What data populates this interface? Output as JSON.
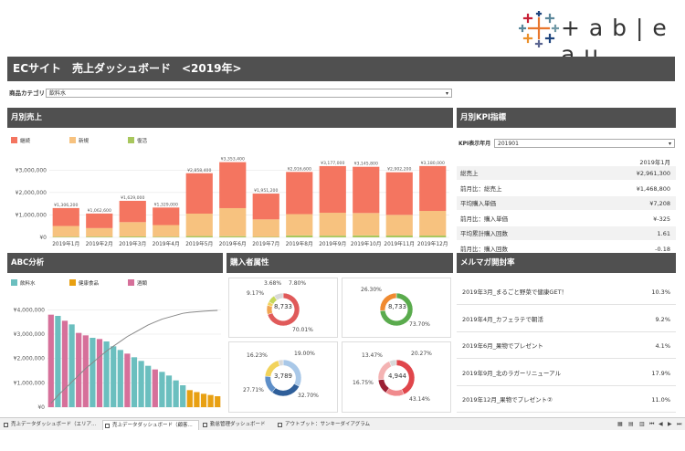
{
  "brand": {
    "logo_text": "+ a b | e a u"
  },
  "title": "ECサイト　売上ダッシュボード　<2019年>",
  "filter": {
    "label": "商品カテゴリ",
    "value": "飲料水"
  },
  "monthly": {
    "title": "月別売上",
    "legend": [
      "継続",
      "新規",
      "復活"
    ]
  },
  "kpi": {
    "title": "月別KPI指標",
    "label": "KPI表示年月",
    "value": "201901",
    "column": "2019年1月",
    "rows": [
      {
        "label": "総売上",
        "value": "¥2,961,300"
      },
      {
        "label": "前月比：総売上",
        "value": "¥1,468,800"
      },
      {
        "label": "平均購入単価",
        "value": "¥7,208"
      },
      {
        "label": "前月比：購入単価",
        "value": "¥-325"
      },
      {
        "label": "平均累計購入回数",
        "value": "1.61"
      },
      {
        "label": "前月比：購入回数",
        "value": "-0.18"
      }
    ]
  },
  "abc": {
    "title": "ABC分析",
    "legend": [
      "飲料水",
      "健康食品",
      "酒類"
    ],
    "y_ticks": [
      "¥4,000,000",
      "¥3,000,000",
      "¥2,000,000",
      "¥1,000,000",
      "¥0"
    ]
  },
  "buyer": {
    "title": "購入者属性",
    "donuts": [
      {
        "center": "8,733",
        "labels": [
          "3.68%",
          "7.80%",
          "9.17%",
          "70.01%"
        ]
      },
      {
        "center": "8,733",
        "labels": [
          "26.30%",
          "73.70%"
        ]
      },
      {
        "center": "3,789",
        "labels": [
          "16.23%",
          "19.00%",
          "27.71%",
          "32.70%"
        ]
      },
      {
        "center": "4,944",
        "labels": [
          "13.47%",
          "20.27%",
          "16.75%",
          "43.14%"
        ]
      }
    ]
  },
  "mailmag": {
    "title": "メルマガ開封率",
    "rows": [
      {
        "label": "2019年3月_まるごと野菜で健康GET！",
        "value": "10.3%"
      },
      {
        "label": "2019年4月_カフェラテで朝活",
        "value": "9.2%"
      },
      {
        "label": "2019年6月_果物でプレゼント",
        "value": "4.1%"
      },
      {
        "label": "2019年9月_北のラガーリニューアル",
        "value": "17.9%"
      },
      {
        "label": "2019年12月_果物でプレゼント②",
        "value": "11.0%"
      }
    ]
  },
  "tabs": [
    "売上データダッシュボード（エリア...",
    "売上データダッシュボード（顧客...",
    "勤怠管理ダッシュボード",
    "アウトプット：サンキーダイアグラム"
  ],
  "colors": {
    "keizoku": "#f47560",
    "shinki": "#f7c27f",
    "fukkatsu": "#a8c75d",
    "inryo": "#6bbfbf",
    "kenko": "#e8a012",
    "sake": "#d6709a"
  },
  "chart_data": [
    {
      "type": "bar",
      "title": "月別売上",
      "categories": [
        "2019年1月",
        "2019年2月",
        "2019年3月",
        "2019年4月",
        "2019年5月",
        "2019年6月",
        "2019年7月",
        "2019年8月",
        "2019年9月",
        "2019年10月",
        "2019年11月",
        "2019年12月"
      ],
      "series": [
        {
          "name": "継続",
          "values": [
            800000,
            650000,
            950000,
            780000,
            1800000,
            2050000,
            1150000,
            1880000,
            2080000,
            2060000,
            1900000,
            2000000
          ]
        },
        {
          "name": "新規",
          "values": [
            480000,
            380000,
            640000,
            520000,
            1000000,
            1250000,
            780000,
            950000,
            1020000,
            1000000,
            920000,
            1100000
          ]
        },
        {
          "name": "復活",
          "values": [
            26200,
            32600,
            39000,
            29000,
            58400,
            53400,
            21200,
            86600,
            77000,
            85800,
            82200,
            80000
          ]
        }
      ],
      "totals": [
        "¥1,306,200",
        "¥1,062,600",
        "¥1,629,000",
        "¥1,329,000",
        "¥2,858,400",
        "¥3,353,400",
        "¥1,951,200",
        "¥2,916,600",
        "¥3,177,000",
        "¥3,145,800",
        "¥2,902,200",
        "¥3,180,000"
      ],
      "y_ticks": [
        "¥3,000,000",
        "¥2,000,000",
        "¥1,000,000",
        "¥0"
      ],
      "ylim": [
        0,
        3500000
      ]
    },
    {
      "type": "bar",
      "title": "ABC分析",
      "groups": [
        "sake",
        "inryo",
        "sake",
        "inryo",
        "sake",
        "sake",
        "inryo",
        "sake",
        "inryo",
        "inryo",
        "inryo",
        "sake",
        "inryo",
        "inryo",
        "inryo",
        "sake",
        "inryo",
        "inryo",
        "inryo",
        "inryo",
        "kenko",
        "kenko",
        "kenko",
        "kenko",
        "kenko"
      ],
      "values": [
        3800000,
        3750000,
        3550000,
        3400000,
        3050000,
        2950000,
        2850000,
        2800000,
        2700000,
        2500000,
        2350000,
        2200000,
        2050000,
        1900000,
        1700000,
        1550000,
        1450000,
        1300000,
        1100000,
        900000,
        700000,
        620000,
        550000,
        500000,
        450000
      ],
      "cumulative_pct": [
        4,
        12,
        19,
        26,
        33,
        40,
        46,
        52,
        58,
        63,
        68,
        73,
        77,
        81,
        85,
        88,
        91,
        93,
        95,
        97,
        98,
        98.6,
        99.2,
        99.6,
        100
      ],
      "ylim": [
        0,
        4500000
      ]
    },
    {
      "type": "pie",
      "donut": 1,
      "values": [
        70.01,
        9.17,
        3.68,
        7.8,
        9.34
      ],
      "colors": [
        "#e05a5a",
        "#f1a552",
        "#f2d35b",
        "#c7d85a",
        "#d9d9d9"
      ]
    },
    {
      "type": "pie",
      "donut": 2,
      "values": [
        73.7,
        26.3
      ],
      "colors": [
        "#5aab4d",
        "#f08a30"
      ]
    },
    {
      "type": "pie",
      "donut": 3,
      "values": [
        32.7,
        27.71,
        16.23,
        19.0,
        4.36
      ],
      "colors": [
        "#a9c8e8",
        "#2f5f9a",
        "#5e8fc8",
        "#f2d35b",
        "#d9d9d9"
      ]
    },
    {
      "type": "pie",
      "donut": 4,
      "values": [
        43.14,
        16.75,
        13.47,
        20.27,
        6.37
      ],
      "colors": [
        "#e0464b",
        "#f08a8d",
        "#9b2034",
        "#f4b3b3",
        "#d9d9d9"
      ]
    }
  ]
}
